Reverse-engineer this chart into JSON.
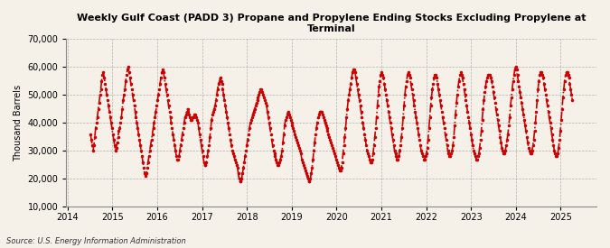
{
  "title": "Weekly Gulf Coast (PADD 3) Propane and Propylene Ending Stocks Excluding Propylene at\nTerminal",
  "ylabel": "Thousand Barrels",
  "source": "Source: U.S. Energy Information Administration",
  "line_color": "#CC0000",
  "background_color": "#F5F0E8",
  "plot_bg_color": "#F5F0E8",
  "grid_color": "#999999",
  "ylim": [
    10000,
    70000
  ],
  "yticks": [
    10000,
    20000,
    30000,
    40000,
    50000,
    60000,
    70000
  ],
  "values": [
    36000,
    34000,
    32000,
    30000,
    32000,
    35000,
    38000,
    40000,
    42000,
    45000,
    47000,
    50000,
    52000,
    55000,
    57000,
    58000,
    56000,
    54000,
    52000,
    50000,
    48000,
    46000,
    44000,
    42000,
    40000,
    38000,
    36000,
    34000,
    32000,
    30000,
    31000,
    33000,
    35000,
    37000,
    38000,
    40000,
    42000,
    45000,
    48000,
    50000,
    52000,
    55000,
    57000,
    59000,
    60000,
    58000,
    56000,
    54000,
    52000,
    50000,
    48000,
    46000,
    44000,
    42000,
    40000,
    38000,
    36000,
    34000,
    32000,
    30000,
    28000,
    26000,
    24000,
    22000,
    21000,
    22000,
    24000,
    26000,
    28000,
    30000,
    32000,
    34000,
    36000,
    38000,
    40000,
    42000,
    44000,
    46000,
    48000,
    50000,
    52000,
    54000,
    56000,
    58000,
    59000,
    58000,
    56000,
    54000,
    52000,
    50000,
    48000,
    46000,
    44000,
    42000,
    40000,
    38000,
    36000,
    34000,
    32000,
    30000,
    28000,
    27000,
    27000,
    28000,
    30000,
    32000,
    34000,
    36000,
    38000,
    40000,
    42000,
    43000,
    44000,
    45000,
    44000,
    43000,
    42000,
    41000,
    41000,
    42000,
    42000,
    43000,
    43000,
    42000,
    41000,
    40000,
    38000,
    36000,
    34000,
    32000,
    30000,
    28000,
    26000,
    25000,
    25000,
    26000,
    28000,
    30000,
    32000,
    35000,
    38000,
    41000,
    43000,
    44000,
    45000,
    46000,
    48000,
    50000,
    52000,
    54000,
    55000,
    56000,
    55000,
    54000,
    52000,
    50000,
    48000,
    46000,
    44000,
    42000,
    40000,
    38000,
    36000,
    34000,
    32000,
    30000,
    29000,
    28000,
    27000,
    26000,
    25000,
    24000,
    22000,
    20000,
    19000,
    19000,
    20000,
    22000,
    24000,
    26000,
    28000,
    30000,
    32000,
    34000,
    36000,
    38000,
    40000,
    41000,
    42000,
    43000,
    44000,
    45000,
    46000,
    47000,
    48000,
    49000,
    50000,
    51000,
    52000,
    52000,
    51000,
    50000,
    49000,
    48000,
    47000,
    46000,
    44000,
    42000,
    40000,
    38000,
    36000,
    34000,
    32000,
    30000,
    29000,
    28000,
    27000,
    26000,
    25000,
    25000,
    26000,
    27000,
    28000,
    30000,
    33000,
    36000,
    39000,
    41000,
    42000,
    43000,
    44000,
    43000,
    42000,
    41000,
    40000,
    39000,
    38000,
    37000,
    36000,
    35000,
    34000,
    33000,
    32000,
    31000,
    30000,
    29000,
    27000,
    26000,
    25000,
    24000,
    23000,
    22000,
    21000,
    20000,
    19000,
    19000,
    20000,
    22000,
    24000,
    27000,
    30000,
    33000,
    36000,
    38000,
    40000,
    42000,
    43000,
    44000,
    44000,
    44000,
    43000,
    42000,
    41000,
    40000,
    39000,
    38000,
    37000,
    36000,
    35000,
    34000,
    33000,
    32000,
    31000,
    30000,
    29000,
    28000,
    27000,
    26000,
    25000,
    24000,
    23000,
    23000,
    24000,
    26000,
    29000,
    32000,
    35000,
    38000,
    42000,
    45000,
    48000,
    50000,
    52000,
    54000,
    56000,
    58000,
    59000,
    59000,
    58000,
    56000,
    54000,
    52000,
    50000,
    48000,
    46000,
    44000,
    42000,
    40000,
    38000,
    36000,
    34000,
    32000,
    30000,
    29000,
    28000,
    27000,
    26000,
    26000,
    27000,
    29000,
    32000,
    35000,
    38000,
    42000,
    46000,
    50000,
    53000,
    55000,
    57000,
    58000,
    57000,
    56000,
    54000,
    52000,
    50000,
    48000,
    46000,
    44000,
    42000,
    40000,
    38000,
    36000,
    34000,
    32000,
    30000,
    29000,
    28000,
    27000,
    27000,
    28000,
    30000,
    32000,
    35000,
    38000,
    42000,
    46000,
    50000,
    53000,
    55000,
    57000,
    58000,
    57000,
    56000,
    54000,
    52000,
    50000,
    48000,
    46000,
    44000,
    42000,
    40000,
    38000,
    36000,
    34000,
    32000,
    30000,
    29000,
    28000,
    27000,
    27000,
    28000,
    29000,
    31000,
    34000,
    38000,
    42000,
    46000,
    49000,
    52000,
    54000,
    56000,
    57000,
    57000,
    56000,
    54000,
    52000,
    50000,
    48000,
    46000,
    44000,
    42000,
    40000,
    38000,
    36000,
    34000,
    32000,
    30000,
    29000,
    28000,
    28000,
    29000,
    30000,
    32000,
    35000,
    39000,
    43000,
    47000,
    50000,
    53000,
    55000,
    57000,
    58000,
    57000,
    56000,
    54000,
    52000,
    50000,
    48000,
    46000,
    44000,
    42000,
    40000,
    38000,
    36000,
    34000,
    32000,
    30000,
    29000,
    28000,
    27000,
    27000,
    28000,
    29000,
    31000,
    34000,
    37000,
    41000,
    45000,
    48000,
    51000,
    53000,
    55000,
    56000,
    57000,
    57000,
    57000,
    56000,
    55000,
    53000,
    51000,
    49000,
    47000,
    45000,
    43000,
    41000,
    39000,
    37000,
    35000,
    33000,
    31000,
    30000,
    29000,
    29000,
    30000,
    32000,
    34000,
    36000,
    39000,
    42000,
    46000,
    49000,
    52000,
    55000,
    57000,
    59000,
    60000,
    59000,
    57000,
    55000,
    53000,
    51000,
    49000,
    47000,
    45000,
    43000,
    41000,
    39000,
    37000,
    35000,
    33000,
    31000,
    30000,
    29000,
    29000,
    30000,
    32000,
    34000,
    37000,
    40000,
    44000,
    48000,
    52000,
    55000,
    57000,
    58000,
    58000,
    57000,
    56000,
    54000,
    52000,
    50000,
    48000,
    46000,
    44000,
    42000,
    40000,
    38000,
    36000,
    34000,
    32000,
    30000,
    29000,
    28000,
    28000,
    29000,
    31000,
    34000,
    37000,
    41000,
    45000,
    49000,
    52000,
    55000,
    57000,
    58000,
    58000,
    57000,
    56000,
    54000,
    52000,
    50000,
    48000
  ]
}
